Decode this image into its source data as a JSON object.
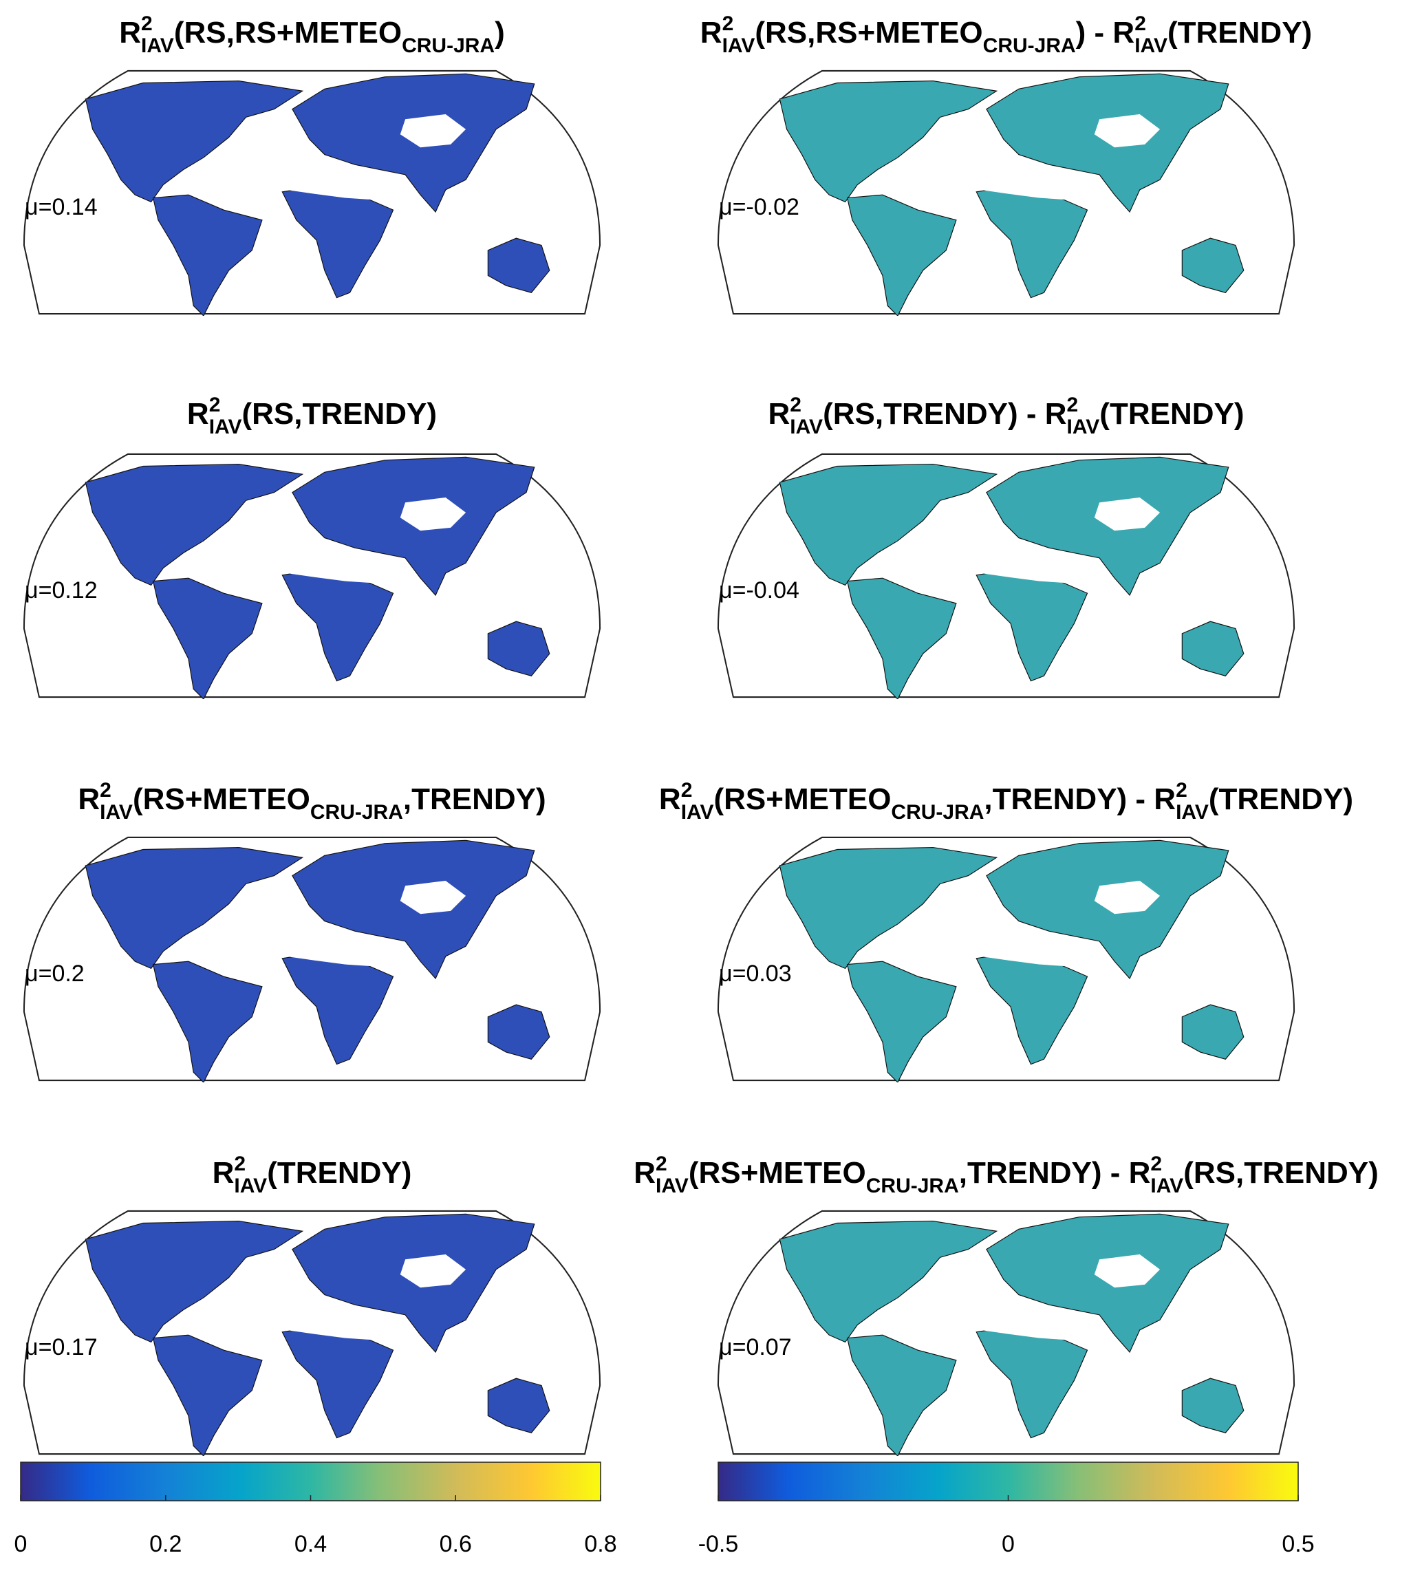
{
  "panels": [
    {
      "title": [
        {
          "text": "R",
          "sup": "2",
          "sub": "IAV"
        },
        {
          "text": "(RS,RS+METEO",
          "sub": "CRU-JRA"
        },
        {
          "text": ")"
        }
      ],
      "mu": "μ=0.14",
      "colorbar": 0
    },
    {
      "title": [
        {
          "text": "R",
          "sup": "2",
          "sub": "IAV"
        },
        {
          "text": "(RS,RS+METEO",
          "sub": "CRU-JRA"
        },
        {
          "text": ") - R",
          "sup": "2",
          "sub": "IAV"
        },
        {
          "text": "(TRENDY)"
        }
      ],
      "mu": "μ=-0.02",
      "colorbar": 1
    },
    {
      "title": [
        {
          "text": "R",
          "sup": "2",
          "sub": "IAV"
        },
        {
          "text": "(RS,TRENDY)"
        }
      ],
      "mu": "μ=0.12",
      "colorbar": 0
    },
    {
      "title": [
        {
          "text": "R",
          "sup": "2",
          "sub": "IAV"
        },
        {
          "text": "(RS,TRENDY) - R",
          "sup": "2",
          "sub": "IAV"
        },
        {
          "text": "(TRENDY)"
        }
      ],
      "mu": "μ=-0.04",
      "colorbar": 1
    },
    {
      "title": [
        {
          "text": "R",
          "sup": "2",
          "sub": "IAV"
        },
        {
          "text": "(RS+METEO",
          "sub": "CRU-JRA"
        },
        {
          "text": ",TRENDY)"
        }
      ],
      "mu": "μ=0.2",
      "colorbar": 0
    },
    {
      "title": [
        {
          "text": "R",
          "sup": "2",
          "sub": "IAV"
        },
        {
          "text": "(RS+METEO",
          "sub": "CRU-JRA"
        },
        {
          "text": ",TRENDY) - R",
          "sup": "2",
          "sub": "IAV"
        },
        {
          "text": "(TRENDY)"
        }
      ],
      "mu": "μ=0.03",
      "colorbar": 1
    },
    {
      "title": [
        {
          "text": "R",
          "sup": "2",
          "sub": "IAV"
        },
        {
          "text": "(TRENDY)"
        }
      ],
      "mu": "μ=0.17",
      "colorbar": 0
    },
    {
      "title": [
        {
          "text": "R",
          "sup": "2",
          "sub": "IAV"
        },
        {
          "text": "(RS+METEO",
          "sub": "CRU-JRA"
        },
        {
          "text": ",TRENDY) - R",
          "sup": "2",
          "sub": "IAV"
        },
        {
          "text": "(RS,TRENDY)"
        }
      ],
      "mu": "μ=0.07",
      "colorbar": 1
    }
  ],
  "colorbars": [
    {
      "lim": [
        0,
        0.8
      ],
      "ticks": [
        0,
        0.2,
        0.4,
        0.6,
        0.8
      ]
    },
    {
      "lim": [
        -0.5,
        0.5
      ],
      "ticks": [
        -0.5,
        0,
        0.5
      ]
    }
  ]
}
